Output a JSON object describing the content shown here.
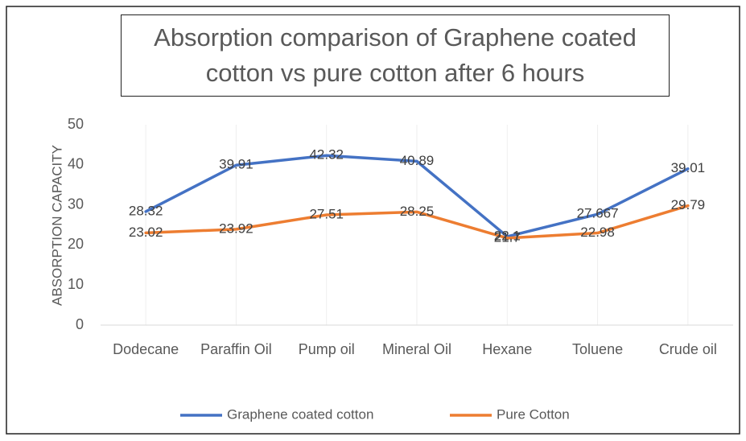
{
  "chart_data": {
    "type": "line",
    "title": "Absorption comparison of Graphene coated cotton vs pure cotton after 6 hours",
    "ylabel": "ABSORPTION CAPACITY",
    "categories": [
      "Dodecane",
      "Paraffin Oil",
      "Pump oil",
      "Mineral Oil",
      "Hexane",
      "Toluene",
      "Crude oil"
    ],
    "series": [
      {
        "name": "Graphene coated cotton",
        "color": "#4472c4",
        "values": [
          28.32,
          39.91,
          42.32,
          40.89,
          22.1,
          27.667,
          39.01
        ]
      },
      {
        "name": "Pure Cotton",
        "color": "#ed7d31",
        "values": [
          23.02,
          23.92,
          27.51,
          28.25,
          21.7,
          22.98,
          29.79
        ]
      }
    ],
    "ylim": [
      0,
      50
    ],
    "yticks": [
      0,
      10,
      20,
      30,
      40,
      50
    ],
    "legend": "bottom"
  }
}
